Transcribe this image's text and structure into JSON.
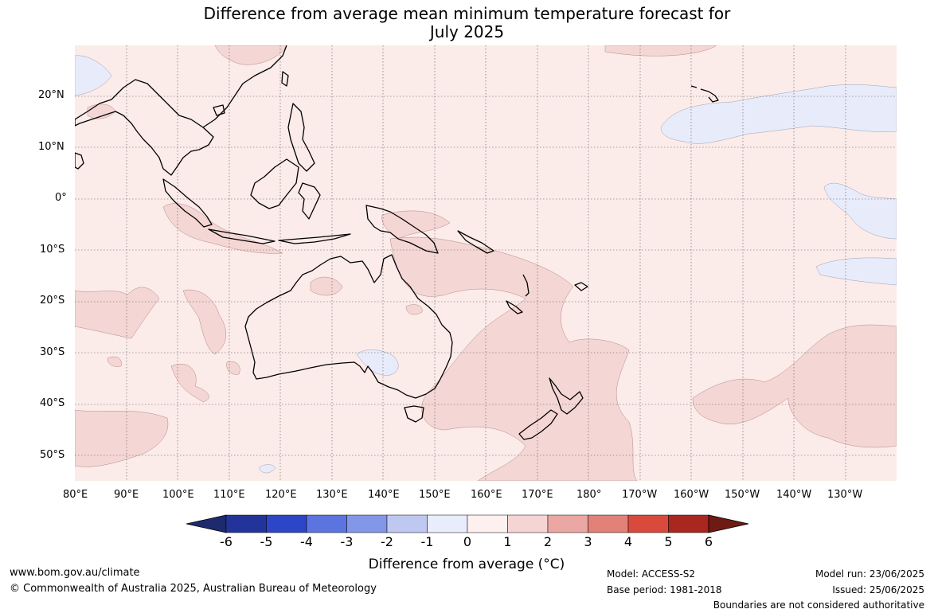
{
  "title_line1": "Difference from average mean minimum temperature forecast for",
  "title_line2": "July 2025",
  "lat_labels": [
    "20°N",
    "10°N",
    "0°",
    "10°S",
    "20°S",
    "30°S",
    "40°S",
    "50°S"
  ],
  "lon_labels": [
    "80°E",
    "90°E",
    "100°E",
    "110°E",
    "120°E",
    "130°E",
    "140°E",
    "150°E",
    "160°E",
    "170°E",
    "180°",
    "170°W",
    "160°W",
    "150°W",
    "140°W",
    "130°W"
  ],
  "colorbar": {
    "ticks": [
      "-6",
      "-5",
      "-4",
      "-3",
      "-2",
      "-1",
      "0",
      "1",
      "2",
      "3",
      "4",
      "5",
      "6"
    ],
    "colors": [
      "#223499",
      "#2d46c8",
      "#5b74e0",
      "#8397e8",
      "#bfc8f0",
      "#e9ecfb",
      "#fdf0ef",
      "#f5d5d3",
      "#eba7a3",
      "#e18178",
      "#d94a3c",
      "#a9271f"
    ],
    "extend_low": "#1d2a6e",
    "extend_high": "#6e1b14",
    "label": "Difference from average (°C)"
  },
  "legend_colors": {
    "slightly_above": "#fbeae8",
    "above": "#f4d6d4",
    "below": "#e8ecfa",
    "ocean_bg": "#fbebe9"
  },
  "footer": {
    "url": "www.bom.gov.au/climate",
    "copyright": "© Commonwealth of Australia 2025, Australian Bureau of Meteorology",
    "model": "Model: ACCESS-S2",
    "base_period": "Base period: 1981-2018",
    "model_run": "Model run: 23/06/2025",
    "issued": "Issued: 25/06/2025",
    "boundaries": "Boundaries are not considered authoritative"
  }
}
